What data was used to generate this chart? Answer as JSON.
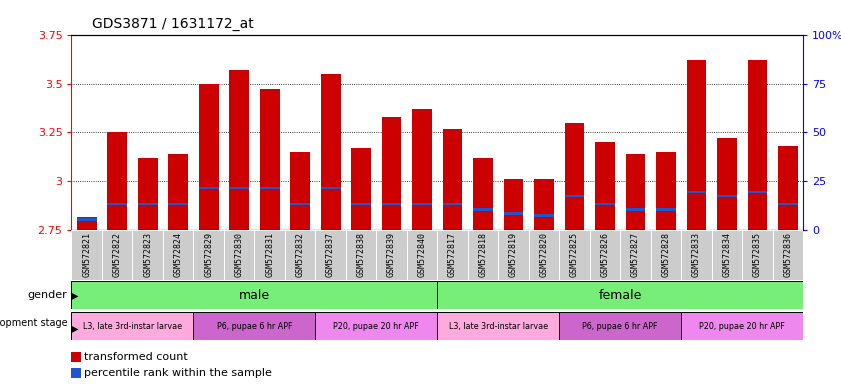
{
  "title": "GDS3871 / 1631172_at",
  "samples": [
    "GSM572821",
    "GSM572822",
    "GSM572823",
    "GSM572824",
    "GSM572829",
    "GSM572830",
    "GSM572831",
    "GSM572832",
    "GSM572837",
    "GSM572838",
    "GSM572839",
    "GSM572840",
    "GSM572817",
    "GSM572818",
    "GSM572819",
    "GSM572820",
    "GSM572825",
    "GSM572826",
    "GSM572827",
    "GSM572828",
    "GSM572833",
    "GSM572834",
    "GSM572835",
    "GSM572836"
  ],
  "transformed_count": [
    2.82,
    3.25,
    3.12,
    3.14,
    3.5,
    3.57,
    3.47,
    3.15,
    3.55,
    3.17,
    3.33,
    3.37,
    3.27,
    3.12,
    3.01,
    3.01,
    3.3,
    3.2,
    3.14,
    3.15,
    3.62,
    3.22,
    3.62,
    3.18
  ],
  "percentile_rank": [
    5,
    13,
    13,
    13,
    21,
    21,
    21,
    13,
    21,
    13,
    13,
    13,
    13,
    10,
    8,
    7,
    17,
    13,
    10,
    10,
    19,
    17,
    19,
    13
  ],
  "ymin": 2.75,
  "ymax": 3.75,
  "yticks_left": [
    2.75,
    3.0,
    3.25,
    3.5,
    3.75
  ],
  "yticks_right": [
    0,
    25,
    50,
    75,
    100
  ],
  "bar_color": "#cc0000",
  "blue_color": "#2255cc",
  "gender_color": "#77ee77",
  "stage_colors": [
    "#ffaadd",
    "#cc66cc",
    "#ee88ee"
  ],
  "male_stages": [
    {
      "label": "L3, late 3rd-instar larvae",
      "start": 0,
      "end": 3
    },
    {
      "label": "P6, pupae 6 hr APF",
      "start": 4,
      "end": 7
    },
    {
      "label": "P20, pupae 20 hr APF",
      "start": 8,
      "end": 11
    }
  ],
  "female_stages": [
    {
      "label": "L3, late 3rd-instar larvae",
      "start": 12,
      "end": 15
    },
    {
      "label": "P6, pupae 6 hr APF",
      "start": 16,
      "end": 19
    },
    {
      "label": "P20, pupae 20 hr APF",
      "start": 20,
      "end": 23
    }
  ],
  "legend_tc": "transformed count",
  "legend_pr": "percentile rank within the sample"
}
